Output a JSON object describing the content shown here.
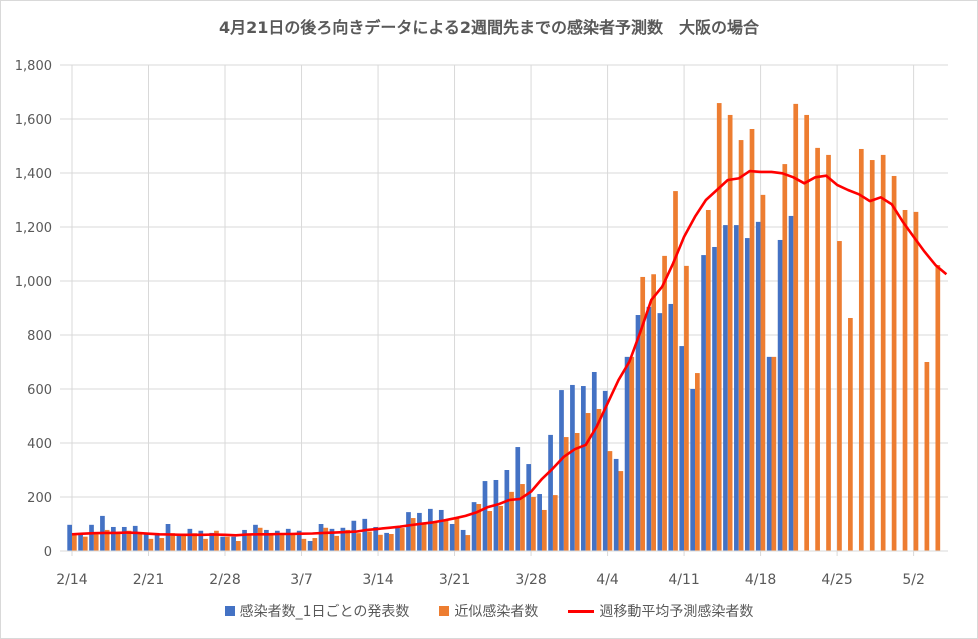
{
  "chart_data": {
    "type": "bar",
    "title": "4月21日の後ろ向きデータによる2週間先までの感染者予測数　大阪の場合",
    "xlabel": "",
    "ylabel": "",
    "ylim": [
      0,
      1800
    ],
    "yticks": [
      0,
      200,
      400,
      600,
      800,
      1000,
      1200,
      1400,
      1600,
      1800
    ],
    "ytick_labels": [
      "0",
      "200",
      "400",
      "600",
      "800",
      "1,000",
      "1,200",
      "1,400",
      "1,600",
      "1,800"
    ],
    "x_start": "2/14",
    "xtick_labels": [
      "2/14",
      "2/21",
      "2/28",
      "3/7",
      "3/14",
      "3/21",
      "3/28",
      "4/4",
      "4/11",
      "4/18",
      "4/25",
      "5/2"
    ],
    "grid": true,
    "legend_position": "bottom",
    "colors": {
      "blue": "#4472C4",
      "orange": "#ED7D31",
      "red": "#FF0000"
    },
    "series": [
      {
        "name": "感染者数_1日ごとの発表数",
        "type": "bar",
        "values": [
          97,
          65,
          97,
          130,
          89,
          89,
          93,
          66,
          60,
          100,
          60,
          82,
          75,
          67,
          53,
          53,
          78,
          97,
          78,
          75,
          82,
          75,
          37,
          100,
          82,
          86,
          112,
          119,
          89,
          67,
          85,
          144,
          141,
          156,
          152,
          100,
          78,
          181,
          259,
          263,
          300,
          385,
          322,
          211,
          430,
          596,
          615,
          611,
          663,
          593,
          341,
          719,
          874,
          904,
          881,
          915,
          759,
          600,
          1096,
          1126,
          1207,
          1207,
          1159,
          1219,
          719,
          1152,
          1241
        ]
      },
      {
        "name": "近似感染者数",
        "type": "bar",
        "values": [
          62,
          53,
          62,
          78,
          66,
          75,
          66,
          45,
          48,
          66,
          60,
          66,
          45,
          75,
          53,
          37,
          60,
          86,
          63,
          66,
          60,
          45,
          48,
          86,
          56,
          78,
          66,
          72,
          60,
          63,
          85,
          122,
          105,
          109,
          115,
          121,
          59,
          174,
          148,
          167,
          219,
          248,
          200,
          152,
          207,
          422,
          437,
          511,
          526,
          370,
          296,
          719,
          1015,
          1025,
          1093,
          1333,
          1056,
          659,
          1263,
          1659,
          1615,
          1522,
          1563,
          1319,
          719,
          1433,
          1656,
          1615,
          1493,
          1467,
          1148,
          863,
          1489,
          1448,
          1467,
          1389,
          1263,
          1256,
          700,
          1059
        ]
      },
      {
        "name": "週移動平均予測感染者数",
        "type": "line",
        "values": [
          62,
          64,
          66,
          67,
          67,
          68,
          67,
          64,
          62,
          61,
          60,
          60,
          60,
          61,
          60,
          58,
          61,
          62,
          62,
          63,
          63,
          64,
          65,
          67,
          68,
          70,
          72,
          78,
          82,
          86,
          90,
          96,
          101,
          106,
          113,
          121,
          130,
          143,
          162,
          173,
          189,
          193,
          220,
          267,
          306,
          349,
          377,
          393,
          460,
          547,
          633,
          701,
          812,
          930,
          979,
          1065,
          1164,
          1238,
          1300,
          1337,
          1374,
          1380,
          1407,
          1404,
          1404,
          1399,
          1384,
          1362,
          1384,
          1390,
          1356,
          1337,
          1321,
          1296,
          1310,
          1284,
          1220,
          1164,
          1109,
          1059,
          1025
        ]
      }
    ]
  }
}
